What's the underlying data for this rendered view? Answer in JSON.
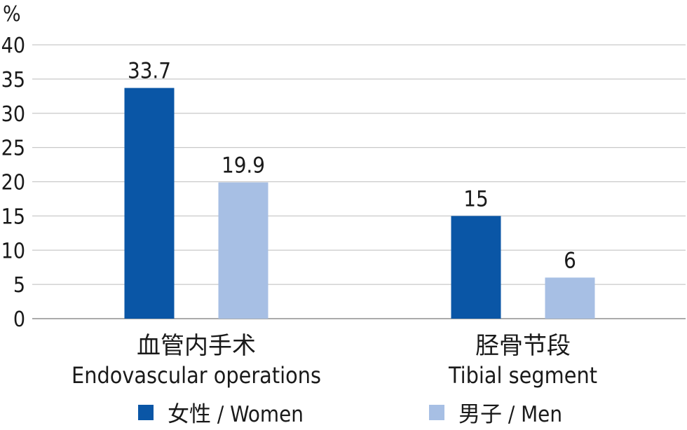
{
  "chart_data": {
    "type": "bar",
    "unit_label": "%",
    "ylim": [
      0,
      40
    ],
    "yticks": [
      0,
      5,
      10,
      15,
      20,
      25,
      30,
      35,
      40
    ],
    "grid": true,
    "legend_position": "bottom",
    "categories": [
      {
        "cn": "血管内手术",
        "en": "Endovascular operations"
      },
      {
        "cn": "胫骨节段",
        "en": "Tibial segment"
      }
    ],
    "series": [
      {
        "name": "女性 / Women",
        "color": "#0a56a6",
        "values": [
          33.7,
          15
        ],
        "labels": [
          "33.7",
          "15"
        ]
      },
      {
        "name": "男子 / Men",
        "color": "#a7bfe4",
        "values": [
          19.9,
          6
        ],
        "labels": [
          "19.9",
          "6"
        ]
      }
    ]
  }
}
